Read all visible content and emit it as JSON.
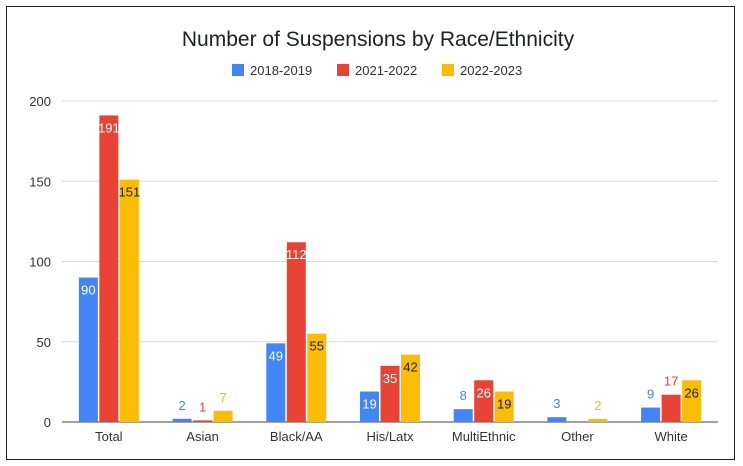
{
  "chart_data": {
    "type": "bar",
    "title": "Number of Suspensions by Race/Ethnicity",
    "xlabel": "",
    "ylabel": "",
    "ylim": [
      0,
      200
    ],
    "yticks": [
      0,
      50,
      100,
      150,
      200
    ],
    "grid": true,
    "legend_position": "top",
    "categories": [
      "Total",
      "Asian",
      "Black/AA",
      "His/Latx",
      "MultiEthnic",
      "Other",
      "White"
    ],
    "series": [
      {
        "name": "2018-2019",
        "color": "#4285f4",
        "values": [
          90,
          2,
          49,
          19,
          8,
          3,
          9
        ]
      },
      {
        "name": "2021-2022",
        "color": "#ea4335",
        "values": [
          191,
          1,
          112,
          35,
          26,
          0,
          17
        ]
      },
      {
        "name": "2022-2023",
        "color": "#fbbc04",
        "values": [
          151,
          7,
          55,
          42,
          19,
          2,
          26
        ]
      }
    ],
    "data_labels": [
      [
        "90",
        "2",
        "49",
        "19",
        "8",
        "3",
        "9"
      ],
      [
        "191",
        "1",
        "112",
        "35",
        "26",
        "",
        "17"
      ],
      [
        "151",
        "7",
        "55",
        "42",
        "19",
        "2",
        "26"
      ]
    ]
  }
}
